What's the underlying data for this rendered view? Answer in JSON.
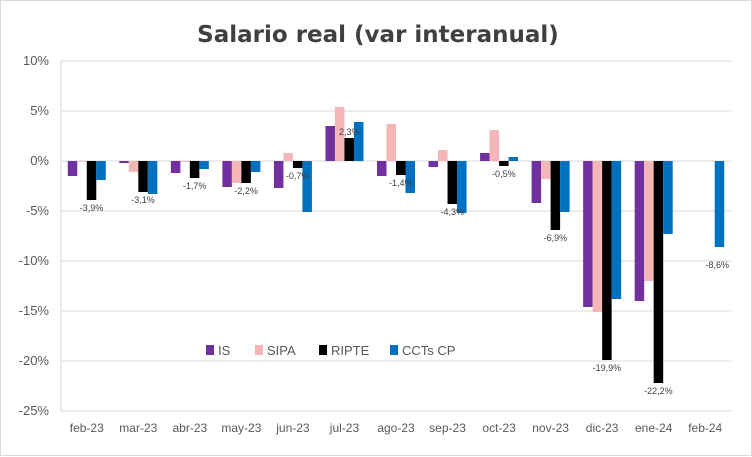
{
  "chart_data": {
    "type": "bar",
    "title": "Salario real (var interanual)",
    "xlabel": "",
    "ylabel": "",
    "ylim": [
      -25,
      10
    ],
    "yticks": [
      "10%",
      "5%",
      "0%",
      "-5%",
      "-10%",
      "-15%",
      "-20%",
      "-25%"
    ],
    "categories": [
      "feb-23",
      "mar-23",
      "abr-23",
      "may-23",
      "jun-23",
      "jul-23",
      "ago-23",
      "sep-23",
      "oct-23",
      "nov-23",
      "dic-23",
      "ene-24",
      "feb-24"
    ],
    "series": [
      {
        "name": "IS",
        "color": "#7030A0",
        "values": [
          -1.5,
          -0.2,
          -1.2,
          -2.6,
          -2.7,
          3.5,
          -1.5,
          -0.6,
          0.8,
          -4.2,
          -14.6,
          -14.0,
          null
        ]
      },
      {
        "name": "SIPA",
        "color": "#F4B6B6",
        "values": [
          0.0,
          -1.1,
          -0.1,
          -2.2,
          0.8,
          5.4,
          3.7,
          1.1,
          3.1,
          -1.8,
          -15.1,
          -12.0,
          null
        ]
      },
      {
        "name": "RIPTE",
        "color": "#000000",
        "values": [
          -3.9,
          -3.1,
          -1.7,
          -2.2,
          -0.7,
          2.3,
          -1.4,
          -4.3,
          -0.5,
          -6.9,
          -19.9,
          -22.2,
          null
        ]
      },
      {
        "name": "CCTs CP",
        "color": "#0070C0",
        "values": [
          -1.9,
          -3.3,
          -0.8,
          -1.1,
          -5.1,
          3.9,
          -3.2,
          -5.2,
          0.4,
          -5.1,
          -13.8,
          -7.3,
          -8.6
        ]
      }
    ],
    "data_labels": [
      "-3,9%",
      "-3,1%",
      "-1,7%",
      "-2,2%",
      "-0,7%",
      "2,3%",
      "-1,4%",
      "-4,3%",
      "-0,5%",
      "-6,9%",
      "-19,9%",
      "-22,2%",
      "-8,6%"
    ],
    "legend_position": "bottom-left-inside",
    "grid": true
  }
}
